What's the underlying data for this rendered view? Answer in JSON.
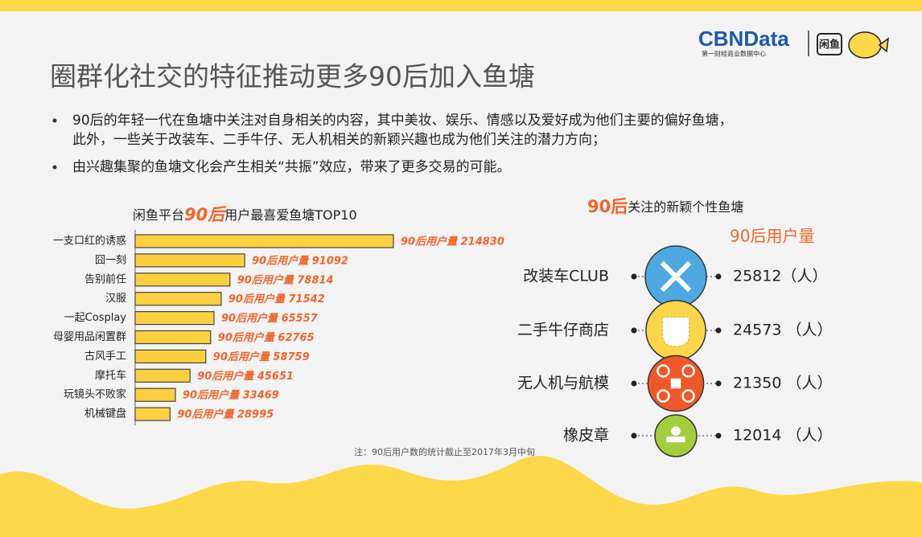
{
  "logo": {
    "brand": "CBNData",
    "brand_sub": "第一财经商业数据中心",
    "app": "闲鱼"
  },
  "title": "圈群化社交的特征推动更多90后加入鱼塘",
  "bullets": [
    [
      "90后的年轻一代在鱼塘中关注对自身相关的内容，其中美妆、娱乐、情感以及爱好成为他们主要的偏好鱼塘，",
      "此外，一些关于改装车、二手牛仔、无人机相关的新颖兴趣也成为他们关注的潜力方向；"
    ],
    [
      "由兴趣集聚的鱼塘文化会产生相关“共振”效应，带来了更多交易的可能。"
    ]
  ],
  "chart_data": {
    "type": "hbar",
    "title_parts": [
      "闲鱼平台",
      "90后",
      "用户最喜爱鱼塘TOP10"
    ],
    "categories": [
      "一支口红的诱惑",
      "囧一刻",
      "告别前任",
      "汉服",
      "一起Cosplay",
      "母婴用品闲置群",
      "古风手工",
      "摩托车",
      "玩镜头不败家",
      "机械键盘"
    ],
    "values": [
      214830,
      91092,
      78814,
      71542,
      65557,
      62765,
      58759,
      45651,
      33469,
      28995
    ],
    "value_labels": [
      "90后用户量 214830",
      "90后用户量  91092",
      "90后用户量 78814",
      "90后用户量 71542",
      "90后用户量 65557",
      "90后用户量 62765",
      "90后用户量 58759",
      "90后用户量 45651",
      "90后用户量 33469",
      "90后用户量 28995"
    ],
    "color": "#fdd03f",
    "label_color": "#f0652a",
    "note": "注：90后用户数的统计截止至2017年3月中旬"
  },
  "niche": {
    "title_parts": [
      "90后",
      "关注的新颖个性鱼塘"
    ],
    "column_header": "90后用户量",
    "items": [
      {
        "name": "改装车CLUB",
        "users": 25812,
        "users_label": "25812（人）",
        "color": "#4ea9e2"
      },
      {
        "name": "二手牛仔商店",
        "users": 24573,
        "users_label": "24573 （人）",
        "color": "#fbd64a"
      },
      {
        "name": "无人机与航模",
        "users": 21350,
        "users_label": "21350 （人）",
        "color": "#f0582a"
      },
      {
        "name": "橡皮章",
        "users": 12014,
        "users_label": "12014 （人）",
        "color": "#a4cf3c"
      }
    ]
  }
}
